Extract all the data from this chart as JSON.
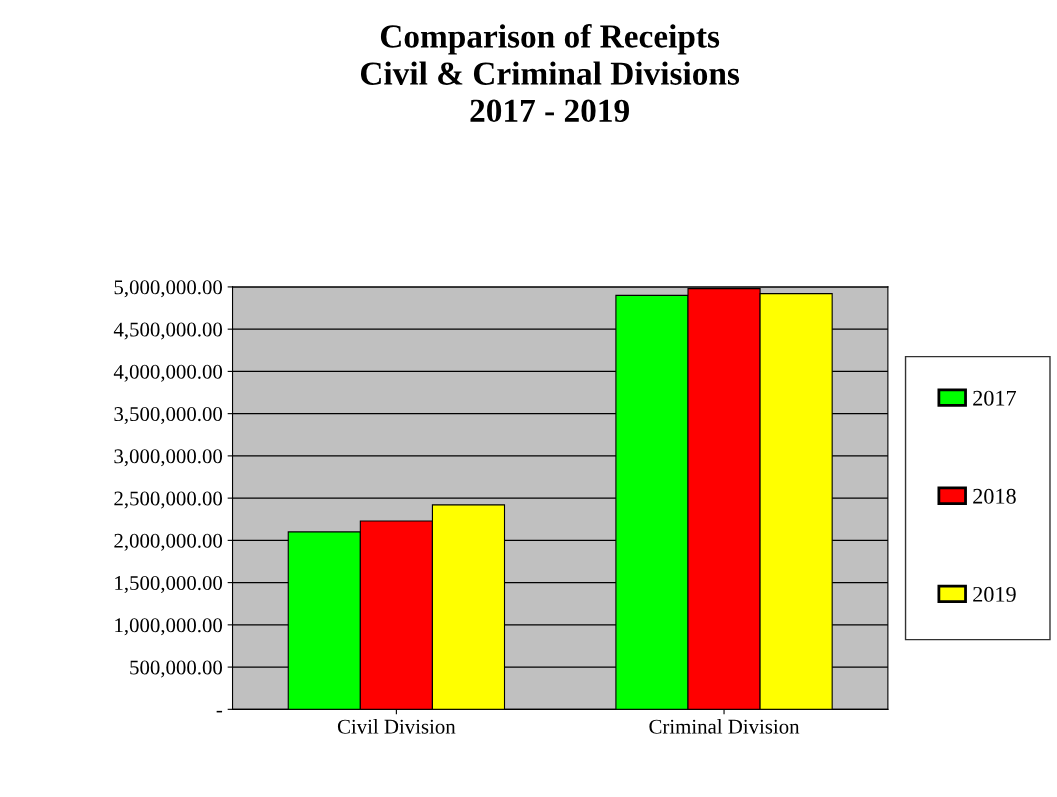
{
  "chart_data": {
    "type": "bar",
    "title": "Comparison of Receipts\nCivil & Criminal Divisions\n2017 - 2019",
    "categories": [
      "Civil Division",
      "Criminal Division"
    ],
    "series": [
      {
        "name": "2017",
        "color": "#00ff00",
        "values": [
          2100000,
          4900000
        ]
      },
      {
        "name": "2018",
        "color": "#ff0000",
        "values": [
          2230000,
          4980000
        ]
      },
      {
        "name": "2019",
        "color": "#ffff00",
        "values": [
          2420000,
          4920000
        ]
      }
    ],
    "ylim": [
      0,
      5000000
    ],
    "yticks": [
      {
        "value": 0,
        "label": "-"
      },
      {
        "value": 500000,
        "label": "500,000.00"
      },
      {
        "value": 1000000,
        "label": "1,000,000.00"
      },
      {
        "value": 1500000,
        "label": "1,500,000.00"
      },
      {
        "value": 2000000,
        "label": "2,000,000.00"
      },
      {
        "value": 2500000,
        "label": "2,500,000.00"
      },
      {
        "value": 3000000,
        "label": "3,000,000.00"
      },
      {
        "value": 3500000,
        "label": "3,500,000.00"
      },
      {
        "value": 4000000,
        "label": "4,000,000.00"
      },
      {
        "value": 4500000,
        "label": "4,500,000.00"
      },
      {
        "value": 5000000,
        "label": "5,000,000.00"
      }
    ],
    "grid": "y",
    "legend": "right"
  }
}
